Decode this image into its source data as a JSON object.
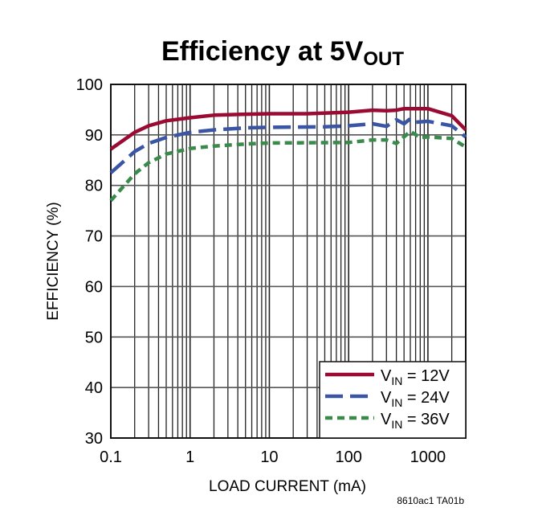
{
  "chart_data": {
    "type": "line",
    "title": "Efficiency at 5V",
    "title_subscript": "OUT",
    "xlabel": "LOAD CURRENT (mA)",
    "ylabel": "EFFICIENCY (%)",
    "xscale": "log",
    "xlim": [
      0.1,
      3000
    ],
    "ylim": [
      30,
      100
    ],
    "xticks": [
      "0.1",
      "1",
      "10",
      "100",
      "1000"
    ],
    "yticks": [
      "30",
      "40",
      "50",
      "60",
      "70",
      "80",
      "90",
      "100"
    ],
    "grid": true,
    "legend_position": "bottom-right",
    "footnote": "8610ac1 TA01b",
    "series": [
      {
        "name": "V",
        "name_sub": "IN",
        "name_suffix": " = 12V",
        "color": "#9b0a32",
        "dash": "solid",
        "x": [
          0.1,
          0.2,
          0.3,
          0.5,
          1,
          2,
          5,
          10,
          30,
          100,
          200,
          300,
          400,
          500,
          1000,
          2000,
          3000
        ],
        "y": [
          87.2,
          90.5,
          91.8,
          92.8,
          93.4,
          93.9,
          94.1,
          94.2,
          94.2,
          94.5,
          94.9,
          94.8,
          94.9,
          95.2,
          95.2,
          93.8,
          91
        ]
      },
      {
        "name": "V",
        "name_sub": "IN",
        "name_suffix": " = 24V",
        "color": "#3a55a4",
        "dash": "long-dash",
        "x": [
          0.1,
          0.2,
          0.3,
          0.5,
          1,
          2,
          5,
          10,
          50,
          100,
          200,
          300,
          400,
          500,
          600,
          700,
          1000,
          2000,
          3000
        ],
        "y": [
          82.5,
          86.7,
          88.3,
          89.5,
          90.5,
          91,
          91.4,
          91.5,
          91.6,
          91.8,
          92.2,
          91.7,
          93,
          92.2,
          93.2,
          92.5,
          92.7,
          91.8,
          89.6
        ]
      },
      {
        "name": "V",
        "name_sub": "IN",
        "name_suffix": " = 36V",
        "color": "#3a8a4c",
        "dash": "short-dash",
        "x": [
          0.1,
          0.2,
          0.3,
          0.5,
          1,
          2,
          5,
          10,
          100,
          200,
          300,
          400,
          600,
          800,
          1000,
          2000,
          3000
        ],
        "y": [
          77,
          82.3,
          84.5,
          86.2,
          87.3,
          87.8,
          88.2,
          88.4,
          88.5,
          89,
          89,
          88.3,
          90.7,
          89.5,
          89.6,
          89.3,
          87.6
        ]
      }
    ]
  }
}
